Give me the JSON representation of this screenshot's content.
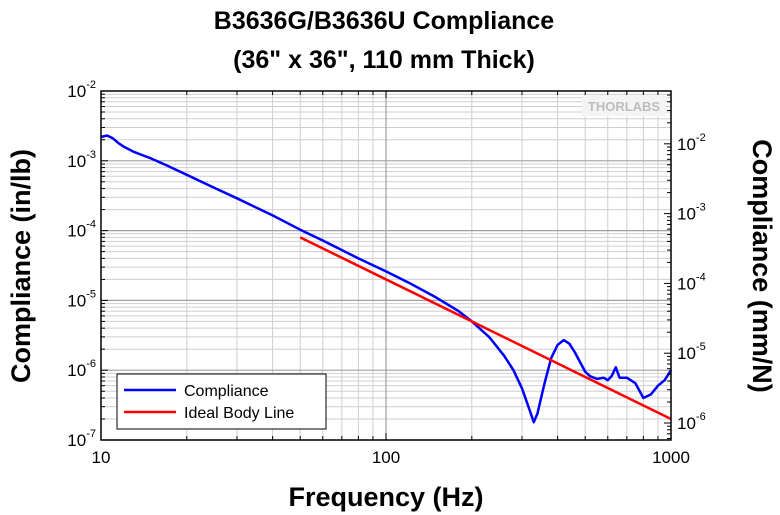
{
  "chart_data": {
    "type": "line",
    "title": "B3636G/B3636U Compliance",
    "subtitle": "(36\" x 36\", 110 mm Thick)",
    "xlabel": "Frequency (Hz)",
    "ylabel_left": "Compliance (in/lb)",
    "ylabel_right": "Compliance (mm/N)",
    "x_scale": "log",
    "y_scale": "log",
    "xlim": [
      10,
      1000
    ],
    "ylim_left": [
      1e-07,
      0.01
    ],
    "ylim_right_mm_per_N": [
      5.71e-07,
      0.0571
    ],
    "x_ticks": [
      {
        "value": 10,
        "label": "10"
      },
      {
        "value": 100,
        "label": "100"
      },
      {
        "value": 1000,
        "label": "1000"
      }
    ],
    "y_ticks_left": [
      {
        "value": 1e-07,
        "base": "10",
        "exp": "-7"
      },
      {
        "value": 1e-06,
        "base": "10",
        "exp": "-6"
      },
      {
        "value": 1e-05,
        "base": "10",
        "exp": "-5"
      },
      {
        "value": 0.0001,
        "base": "10",
        "exp": "-4"
      },
      {
        "value": 0.001,
        "base": "10",
        "exp": "-3"
      },
      {
        "value": 0.01,
        "base": "10",
        "exp": "-2"
      }
    ],
    "y_ticks_right": [
      {
        "value": 1e-06,
        "base": "10",
        "exp": "-6"
      },
      {
        "value": 1e-05,
        "base": "10",
        "exp": "-5"
      },
      {
        "value": 0.0001,
        "base": "10",
        "exp": "-4"
      },
      {
        "value": 0.001,
        "base": "10",
        "exp": "-3"
      },
      {
        "value": 0.01,
        "base": "10",
        "exp": "-2"
      }
    ],
    "grid": true,
    "legend_position": "bottom-left",
    "watermark": "THORLABS",
    "series": [
      {
        "name": "Compliance",
        "color": "#0000ff",
        "x": [
          10,
          10.5,
          11,
          11.5,
          12,
          13,
          14,
          15,
          17,
          20,
          25,
          30,
          40,
          50,
          60,
          80,
          100,
          120,
          150,
          180,
          200,
          230,
          260,
          280,
          300,
          320,
          330,
          340,
          360,
          380,
          400,
          420,
          440,
          460,
          480,
          500,
          520,
          550,
          580,
          600,
          620,
          640,
          660,
          700,
          750,
          800,
          850,
          900,
          950,
          1000
        ],
        "y": [
          0.0022,
          0.0023,
          0.0021,
          0.0018,
          0.0016,
          0.00135,
          0.0012,
          0.00108,
          0.00086,
          0.00063,
          0.00041,
          0.00029,
          0.000165,
          0.000103,
          7.2e-05,
          4e-05,
          2.6e-05,
          1.8e-05,
          1.1e-05,
          7e-06,
          5e-06,
          3e-06,
          1.6e-06,
          1e-06,
          5.5e-07,
          2.6e-07,
          1.8e-07,
          2.4e-07,
          6.5e-07,
          1.5e-06,
          2.3e-06,
          2.7e-06,
          2.4e-06,
          1.8e-06,
          1.3e-06,
          9.5e-07,
          8.2e-07,
          7.5e-07,
          7.8e-07,
          7.2e-07,
          8.3e-07,
          1.1e-06,
          7.8e-07,
          7.8e-07,
          6.5e-07,
          4e-07,
          4.5e-07,
          6e-07,
          7.2e-07,
          1e-06
        ]
      },
      {
        "name": "Ideal Body Line",
        "color": "#ff0000",
        "x": [
          50,
          1000
        ],
        "y": [
          8e-05,
          2e-07
        ]
      }
    ]
  }
}
